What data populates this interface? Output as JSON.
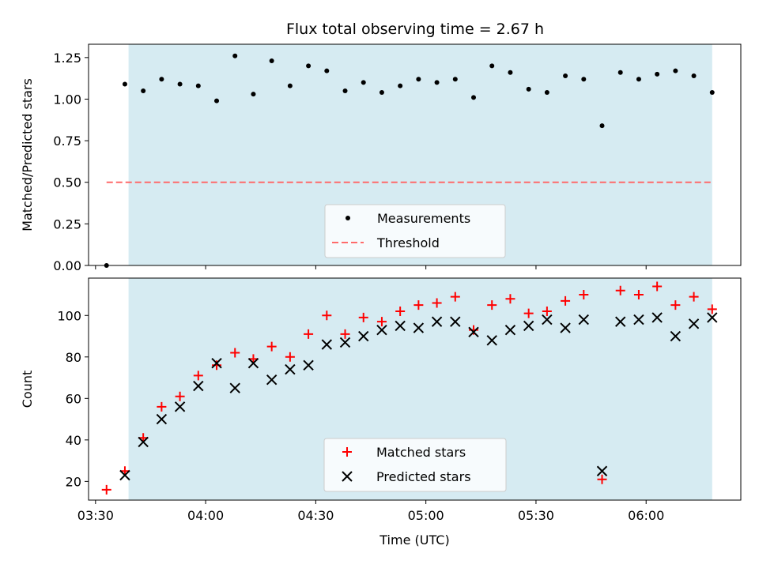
{
  "title": "Flux total observing time = 2.67 h",
  "colors": {
    "shade": "#add8e6",
    "measurement": "#000000",
    "threshold": "#ff6b6b",
    "matched": "#ff0000",
    "predicted": "#000000"
  },
  "chart_data": [
    {
      "type": "scatter",
      "panel": "top",
      "ylabel": "Matched/Predicted stars",
      "ylim": [
        0,
        1.33
      ],
      "yticks": [
        "0.00",
        "0.25",
        "0.50",
        "0.75",
        "1.00",
        "1.25"
      ],
      "shaded_span": [
        "03:39",
        "06:18"
      ],
      "legend_placement": "lower center",
      "series": [
        {
          "name": "Measurements",
          "marker": "dot",
          "x": [
            "03:33",
            "03:38",
            "03:43",
            "03:48",
            "03:53",
            "03:58",
            "04:03",
            "04:08",
            "04:13",
            "04:18",
            "04:23",
            "04:28",
            "04:33",
            "04:38",
            "04:43",
            "04:48",
            "04:53",
            "04:58",
            "05:03",
            "05:08",
            "05:13",
            "05:18",
            "05:23",
            "05:28",
            "05:33",
            "05:38",
            "05:43",
            "05:48",
            "05:53",
            "05:58",
            "06:03",
            "06:08",
            "06:13",
            "06:18"
          ],
          "y": [
            0.0,
            1.09,
            1.05,
            1.12,
            1.09,
            1.08,
            0.99,
            1.26,
            1.03,
            1.23,
            1.08,
            1.2,
            1.17,
            1.05,
            1.1,
            1.04,
            1.08,
            1.12,
            1.1,
            1.12,
            1.01,
            1.2,
            1.16,
            1.06,
            1.04,
            1.14,
            1.12,
            0.84,
            1.16,
            1.12,
            1.15,
            1.17,
            1.14,
            1.04
          ]
        },
        {
          "name": "Threshold",
          "marker": "dashed-line",
          "x": [
            "03:33",
            "06:18"
          ],
          "y": [
            0.5,
            0.5
          ]
        }
      ]
    },
    {
      "type": "scatter",
      "panel": "bottom",
      "xlabel": "Time (UTC)",
      "ylabel": "Count",
      "ylim": [
        11,
        118
      ],
      "yticks": [
        "20",
        "40",
        "60",
        "80",
        "100"
      ],
      "xticks": [
        "03:30",
        "04:00",
        "04:30",
        "05:00",
        "05:30",
        "06:00"
      ],
      "shaded_span": [
        "03:39",
        "06:18"
      ],
      "legend_placement": "lower center",
      "series": [
        {
          "name": "Matched stars",
          "marker": "plus",
          "x": [
            "03:33",
            "03:38",
            "03:43",
            "03:48",
            "03:53",
            "03:58",
            "04:03",
            "04:08",
            "04:13",
            "04:18",
            "04:23",
            "04:28",
            "04:33",
            "04:38",
            "04:43",
            "04:48",
            "04:53",
            "04:58",
            "05:03",
            "05:08",
            "05:13",
            "05:18",
            "05:23",
            "05:28",
            "05:33",
            "05:38",
            "05:43",
            "05:48",
            "05:53",
            "05:58",
            "06:03",
            "06:08",
            "06:13",
            "06:18"
          ],
          "y": [
            16,
            25,
            41,
            56,
            61,
            71,
            76,
            82,
            79,
            85,
            80,
            91,
            100,
            91,
            99,
            97,
            102,
            105,
            106,
            109,
            93,
            105,
            108,
            101,
            102,
            107,
            110,
            21,
            112,
            110,
            114,
            105,
            109,
            103
          ]
        },
        {
          "name": "Predicted stars",
          "marker": "x",
          "x": [
            "03:38",
            "03:43",
            "03:48",
            "03:53",
            "03:58",
            "04:03",
            "04:08",
            "04:13",
            "04:18",
            "04:23",
            "04:28",
            "04:33",
            "04:38",
            "04:43",
            "04:48",
            "04:53",
            "04:58",
            "05:03",
            "05:08",
            "05:13",
            "05:18",
            "05:23",
            "05:28",
            "05:33",
            "05:38",
            "05:43",
            "05:48",
            "05:53",
            "05:58",
            "06:03",
            "06:08",
            "06:13",
            "06:18"
          ],
          "y": [
            23,
            39,
            50,
            56,
            66,
            77,
            65,
            77,
            69,
            74,
            76,
            86,
            87,
            90,
            93,
            95,
            94,
            97,
            97,
            92,
            88,
            93,
            95,
            98,
            94,
            98,
            25,
            97,
            98,
            99,
            90,
            96,
            99
          ]
        }
      ]
    }
  ]
}
